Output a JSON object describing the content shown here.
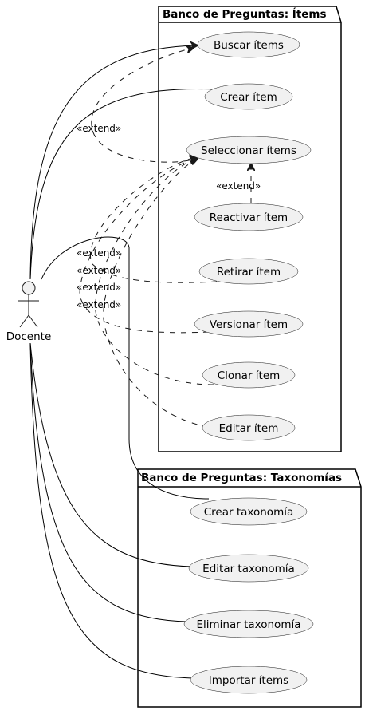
{
  "actor": {
    "label": "Docente"
  },
  "packages": [
    {
      "title": "Banco de Preguntas: Ítems",
      "use_cases": [
        "Buscar ítems",
        "Crear ítem",
        "Seleccionar ítems",
        "Reactivar ítem",
        "Retirar ítem",
        "Versionar ítem",
        "Clonar ítem",
        "Editar ítem"
      ]
    },
    {
      "title": "Banco de Preguntas: Taxonomías",
      "use_cases": [
        "Crear taxonomía",
        "Editar taxonomía",
        "Eliminar taxonomía",
        "Importar ítems"
      ]
    }
  ],
  "relations": {
    "extend_label": "«extend»",
    "extend_labels_shown": [
      "«extend»",
      "«extend»",
      "«extend»",
      "«extend»",
      "«extend»",
      "«extend»"
    ]
  }
}
